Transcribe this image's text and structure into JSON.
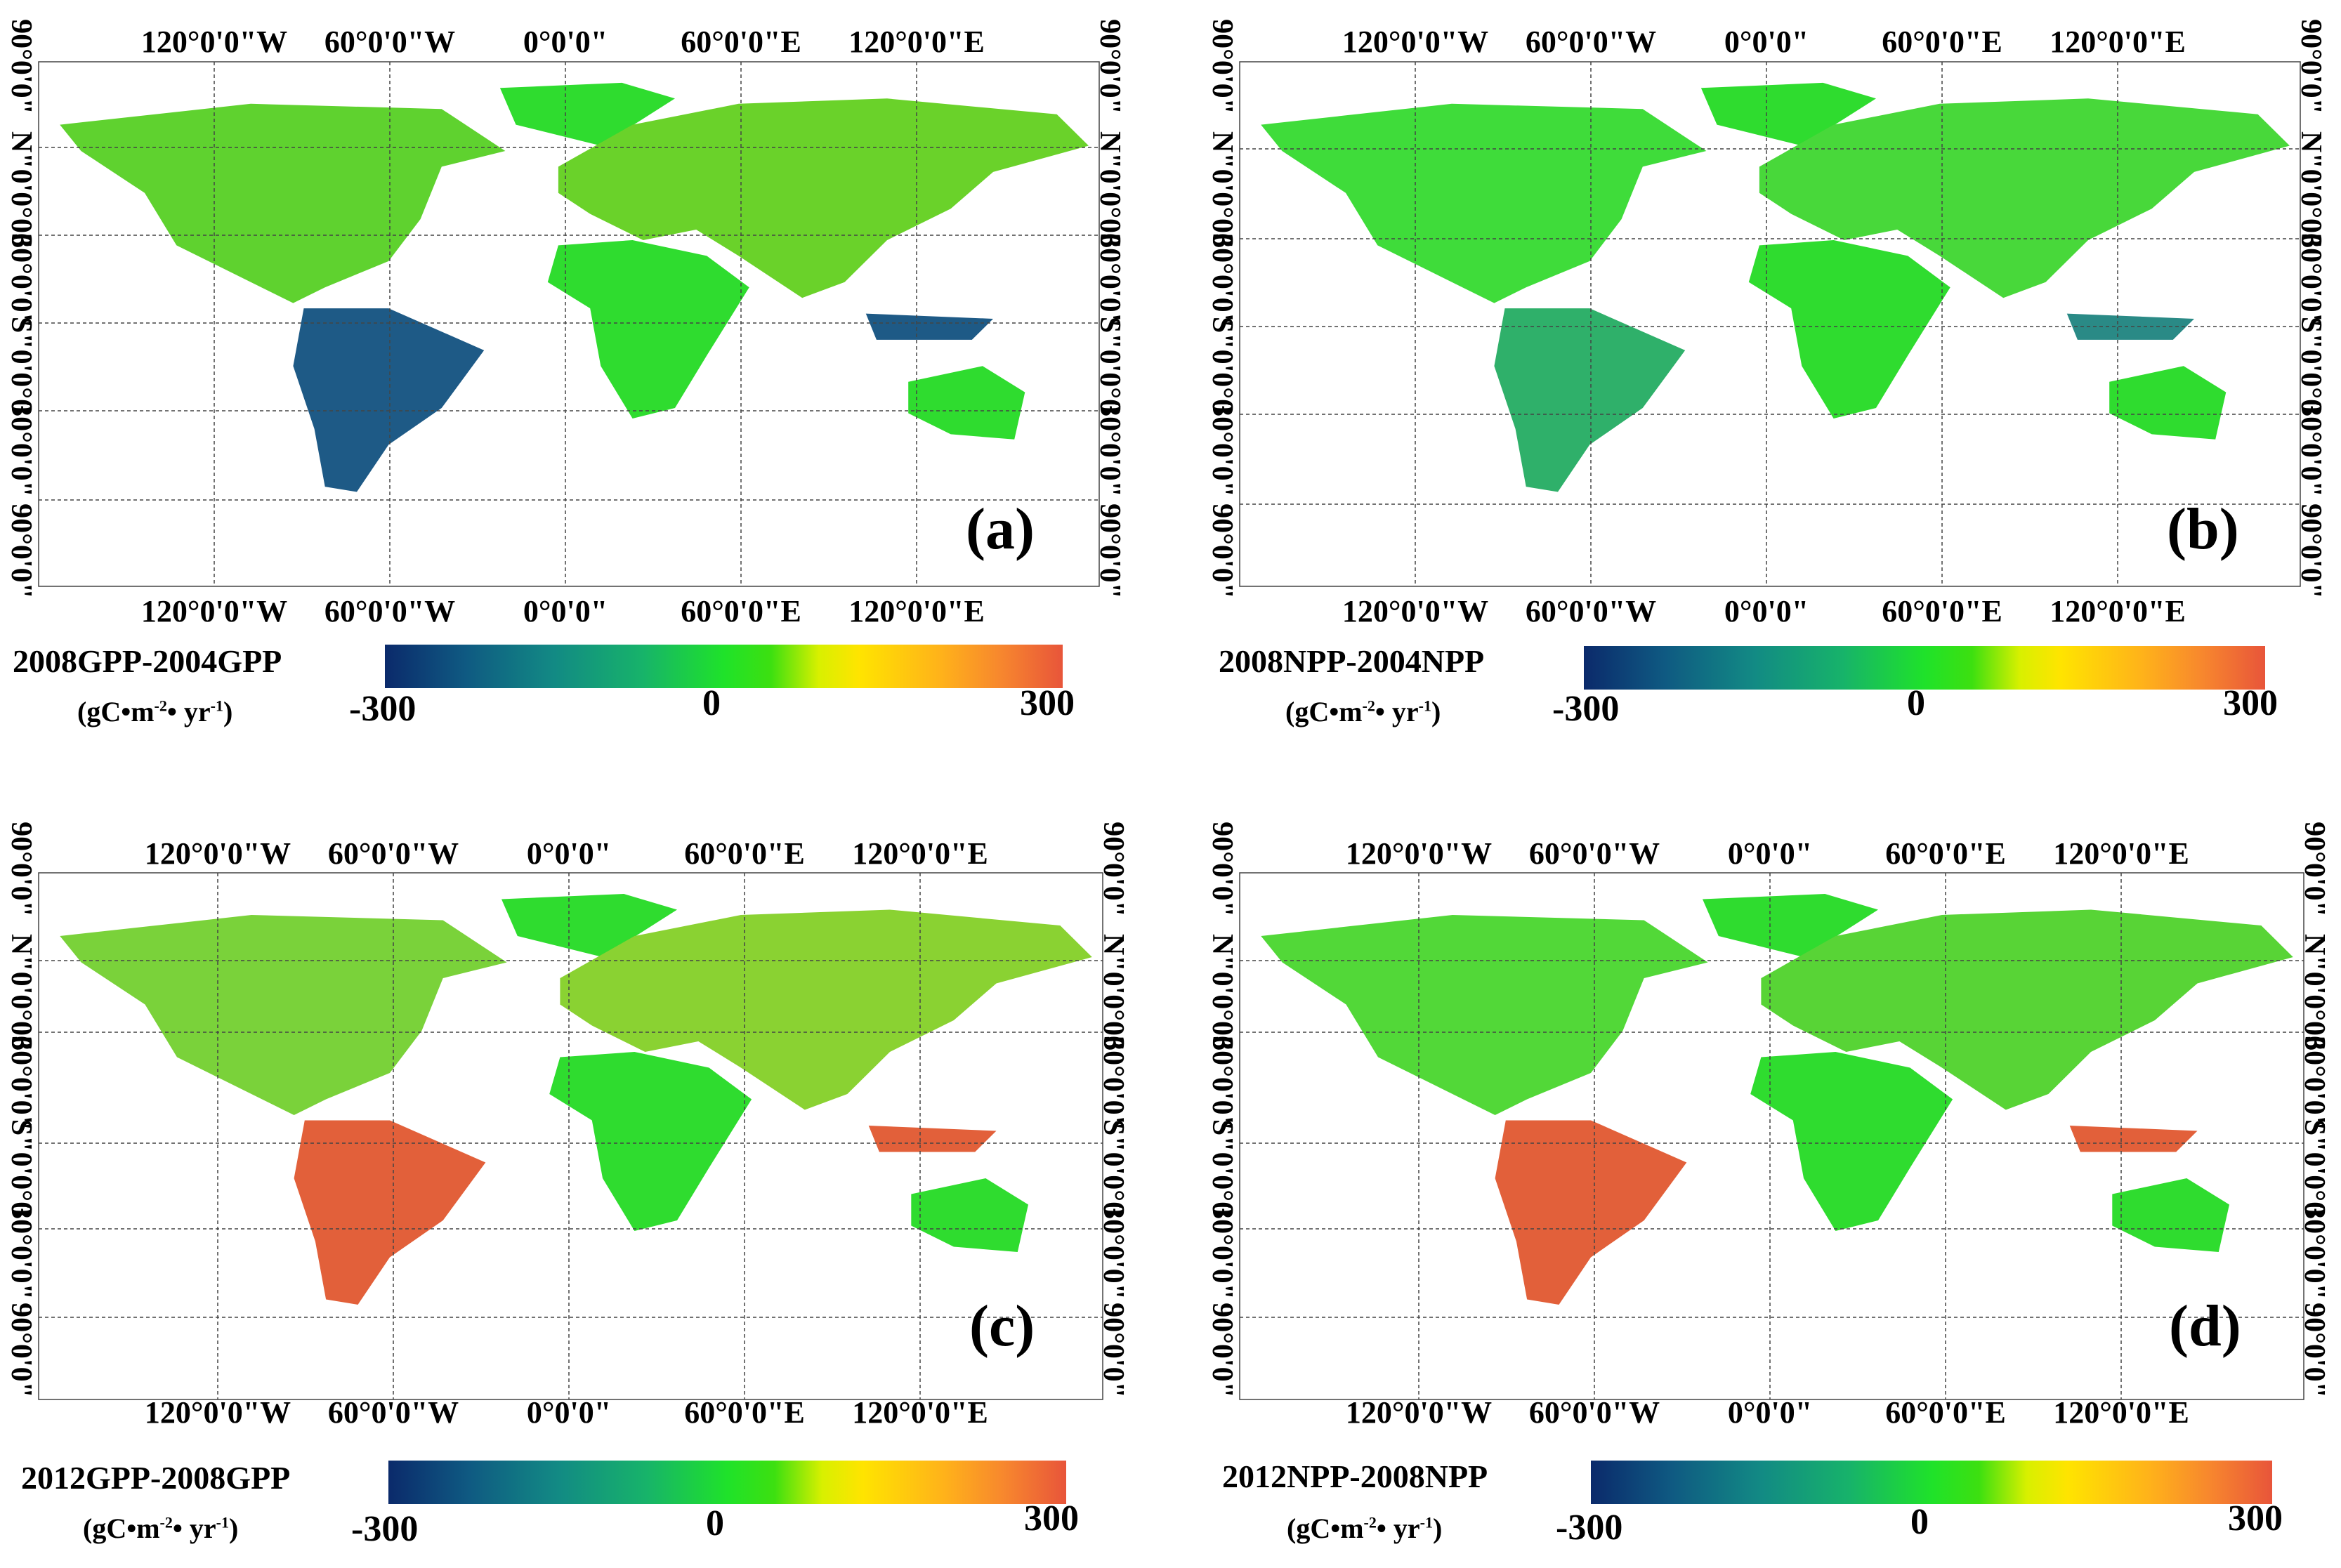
{
  "axis_labels": {
    "lon_top": [
      "120°0'0\"W",
      "60°0'0\"W",
      "0°0'0\"",
      "60°0'0\"E",
      "120°0'0\"E"
    ],
    "lon_bottom": [
      "120°0'0\"W",
      "60°0'0\"W",
      "0°0'0\"",
      "60°0'0\"E",
      "120°0'0\"E"
    ],
    "lat_left": [
      "90°0'0\"",
      "N\"0'0°06",
      "30°0'0\"",
      "S\"0'0°0",
      "30°0'0\"",
      "90°0'0\""
    ],
    "lat_right": [
      "90°0'0\"",
      "N\"0'0°06",
      "30°0'0\"",
      "S\"0'0°0",
      "30°0'0\"",
      "90°0'0\""
    ]
  },
  "colorbar": {
    "min_label": "-300",
    "mid_label": "0",
    "max_label": "300",
    "units": "(gC•m",
    "units_sup1": "-2",
    "units_mid": "• yr",
    "units_sup2": "-1",
    "units_end": ")",
    "stops": [
      "#0b2a6b",
      "#128a84",
      "#1fe22a",
      "#ffe400",
      "#f7862e",
      "#e8553a"
    ]
  },
  "colors": {
    "neutral_land": "#2fdc2f",
    "increase": "#e2603a",
    "decrease": "#1e5a86",
    "gridline": "#444444"
  },
  "panels": [
    {
      "letter": "(a)",
      "colorbar_title": "2008GPP-2004GPP",
      "pattern": "mixed"
    },
    {
      "letter": "(b)",
      "colorbar_title": "2008NPP-2004NPP",
      "pattern": "mild"
    },
    {
      "letter": "(c)",
      "colorbar_title": "2012GPP-2008GPP",
      "pattern": "amazon_increase"
    },
    {
      "letter": "(d)",
      "colorbar_title": "2012NPP-2008NPP",
      "pattern": "amazon_increase_mild"
    }
  ]
}
